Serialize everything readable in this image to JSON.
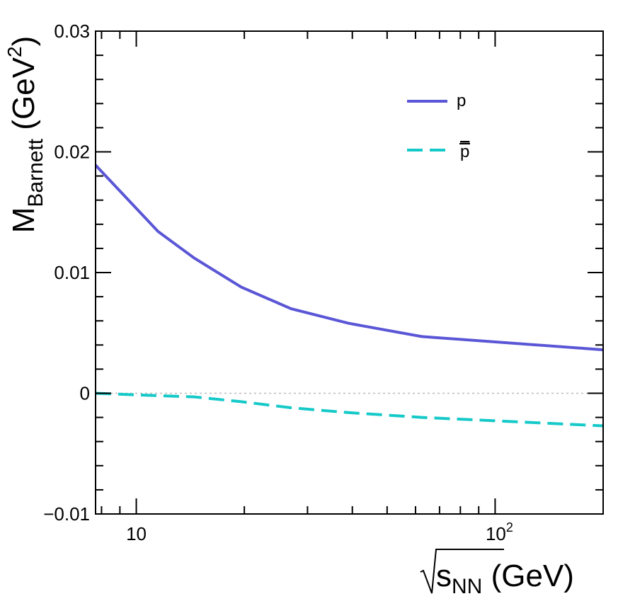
{
  "chart_data": {
    "type": "line",
    "x_scale": "log",
    "xlim": [
      7.7,
      200
    ],
    "ylim": [
      -0.01,
      0.03
    ],
    "x": [
      7.7,
      11.5,
      14.5,
      19.6,
      27,
      39,
      62.4,
      200
    ],
    "y_ticks": [
      "0.03",
      "0.02",
      "0.01",
      "0",
      "−0.01"
    ],
    "y_tick_values": [
      0.03,
      0.02,
      0.01,
      0,
      -0.01
    ],
    "x_tick_labels": [
      "10",
      "10",
      "2"
    ],
    "ylabel": {
      "main": "M",
      "sub": "Barnett",
      "unit_open": " (GeV",
      "unit_sup": "2",
      "unit_close": ")"
    },
    "xlabel": {
      "sub": "NN",
      "main": "s",
      "unit": " (GeV)"
    },
    "series": [
      {
        "name": "p",
        "color": "#5a56d6",
        "dash": "solid",
        "values": [
          0.0189,
          0.0134,
          0.0112,
          0.0088,
          0.007,
          0.0058,
          0.0047,
          0.0036
        ]
      },
      {
        "name": "p",
        "overline": true,
        "color": "#16c9c9",
        "dash": "dashed",
        "values": [
          0.0,
          -0.0002,
          -0.0003,
          -0.0007,
          -0.0012,
          -0.0016,
          -0.002,
          -0.0027
        ]
      }
    ],
    "reference_line": {
      "y": 0,
      "style": "dotted",
      "color": "#bbbbbb"
    }
  }
}
